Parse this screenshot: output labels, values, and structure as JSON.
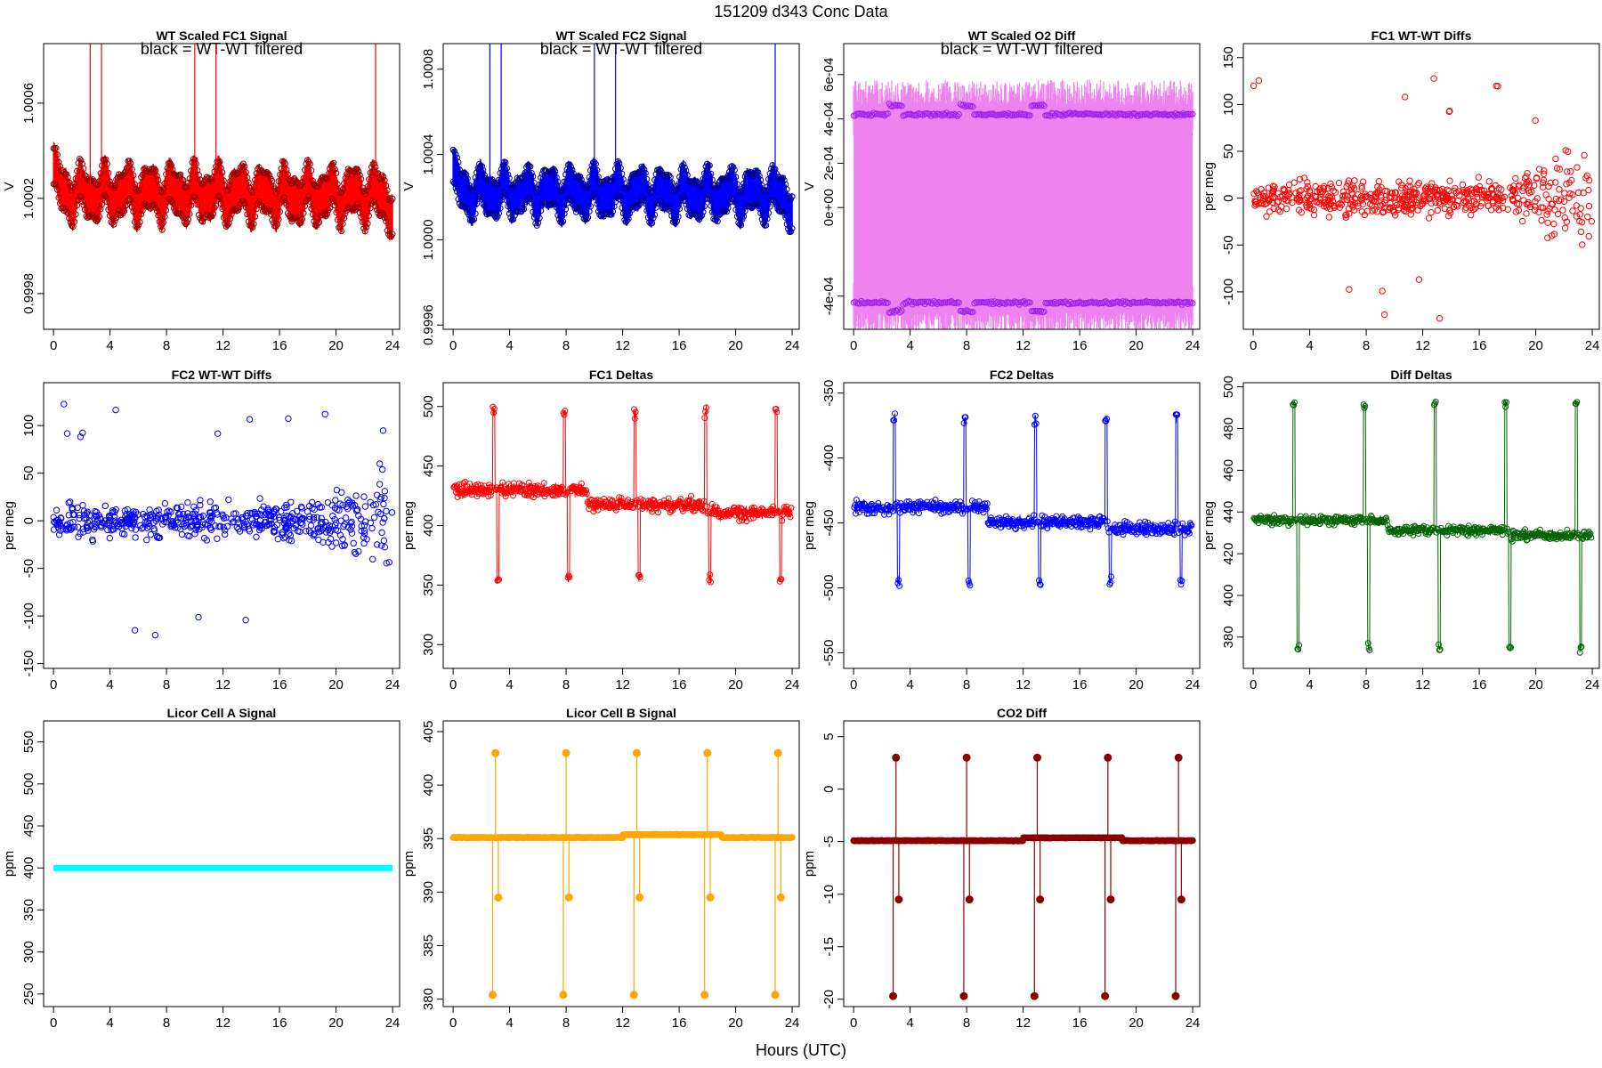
{
  "figure": {
    "title": "151209   d343   Conc Data",
    "xlabel": "Hours (UTC)"
  },
  "chart_data": [
    {
      "id": "fc1-signal",
      "type": "line",
      "title": "WT Scaled FC1 Signal",
      "note": "black = WT-WT filtered",
      "ylabel": "V",
      "xlim": [
        -0.7,
        24.5
      ],
      "ylim": [
        0.99965,
        1.00085
      ],
      "xticks": [
        0,
        4,
        8,
        12,
        16,
        20,
        24
      ],
      "xtick_labels": [
        "0",
        "4",
        "8",
        "12",
        "16",
        "20",
        "24"
      ],
      "yticks": [
        0.9998,
        1.0002,
        1.0006
      ],
      "ytick_labels": [
        "0.9998",
        "1.0002",
        "1.0006"
      ],
      "color": "#ff0000",
      "marker_color": "#8b0000",
      "style": "band",
      "center": 1.00022,
      "amplitude": 0.00014,
      "mode": "wave"
    },
    {
      "id": "fc2-signal",
      "type": "line",
      "title": "WT Scaled FC2 Signal",
      "note": "black = WT-WT filtered",
      "ylabel": "V",
      "xlim": [
        -0.7,
        24.5
      ],
      "ylim": [
        0.99958,
        1.00092
      ],
      "xticks": [
        0,
        4,
        8,
        12,
        16,
        20,
        24
      ],
      "xtick_labels": [
        "0",
        "4",
        "8",
        "12",
        "16",
        "20",
        "24"
      ],
      "yticks": [
        0.9996,
        1.0,
        1.0004,
        1.0008
      ],
      "ytick_labels": [
        "0.9996",
        "1.0000",
        "1.0004",
        "1.0008"
      ],
      "color": "#0000ff",
      "marker_color": "#00008b",
      "style": "band",
      "center": 1.00022,
      "amplitude": 0.00014,
      "mode": "wave"
    },
    {
      "id": "o2-diff",
      "type": "area",
      "title": "WT Scaled O2 Diff",
      "note": "black = WT-WT filtered",
      "ylabel": "V",
      "xlim": [
        -0.7,
        24.5
      ],
      "ylim": [
        -0.00055,
        0.00074
      ],
      "xticks": [
        0,
        4,
        8,
        12,
        16,
        20,
        24
      ],
      "xtick_labels": [
        "0",
        "4",
        "8",
        "12",
        "16",
        "20",
        "24"
      ],
      "yticks": [
        -0.0004,
        0,
        0.0002,
        0.0004,
        0.0006
      ],
      "ytick_labels": [
        "-4e-04",
        "0e+00",
        "2e-04",
        "4e-04",
        "6e-04"
      ],
      "color": "#ee82ee",
      "marker_color": "#a020f0",
      "style": "fill",
      "upper": 0.00042,
      "lower": -0.00043,
      "mode": "dual"
    },
    {
      "id": "fc1-wtwt",
      "type": "scatter",
      "title": "FC1 WT-WT Diffs",
      "ylabel": "per meg",
      "xlim": [
        -0.7,
        24.5
      ],
      "ylim": [
        -140,
        165
      ],
      "xticks": [
        0,
        4,
        8,
        12,
        16,
        20,
        24
      ],
      "xtick_labels": [
        "0",
        "4",
        "8",
        "12",
        "16",
        "20",
        "24"
      ],
      "yticks": [
        -100,
        -50,
        0,
        50,
        100,
        150
      ],
      "ytick_labels": [
        "-100",
        "-50",
        "0",
        "50",
        "100",
        "150"
      ],
      "color": "#ff0000",
      "center": 0,
      "spread": 20,
      "mode": "scatter"
    },
    {
      "id": "fc2-wtwt",
      "type": "scatter",
      "title": "FC2 WT-WT Diffs",
      "ylabel": "per meg",
      "xlim": [
        -0.7,
        24.5
      ],
      "ylim": [
        -155,
        145
      ],
      "xticks": [
        0,
        4,
        8,
        12,
        16,
        20,
        24
      ],
      "xtick_labels": [
        "0",
        "4",
        "8",
        "12",
        "16",
        "20",
        "24"
      ],
      "yticks": [
        -150,
        -100,
        -50,
        0,
        50,
        100
      ],
      "ytick_labels": [
        "-150",
        "-100",
        "-50",
        "0",
        "50",
        "100"
      ],
      "color": "#0000ff",
      "center": 0,
      "spread": 20,
      "mode": "scatter"
    },
    {
      "id": "fc1-deltas",
      "type": "line",
      "title": "FC1 Deltas",
      "ylabel": "per meg",
      "xlim": [
        -0.7,
        24.5
      ],
      "ylim": [
        280,
        520
      ],
      "xticks": [
        0,
        4,
        8,
        12,
        16,
        20,
        24
      ],
      "xtick_labels": [
        "0",
        "4",
        "8",
        "12",
        "16",
        "20",
        "24"
      ],
      "yticks": [
        300,
        350,
        400,
        450,
        500
      ],
      "ytick_labels": [
        "300",
        "350",
        "400",
        "450",
        "500"
      ],
      "color": "#ff0000",
      "center": 430,
      "spread": 8,
      "mode": "deltas",
      "spike_times": [
        2.8,
        7.8,
        12.8,
        17.8,
        22.8
      ],
      "spike_high": 495,
      "spike_low": 355
    },
    {
      "id": "fc2-deltas",
      "type": "line",
      "title": "FC2 Deltas",
      "ylabel": "per meg",
      "xlim": [
        -0.7,
        24.5
      ],
      "ylim": [
        -562,
        -342
      ],
      "xticks": [
        0,
        4,
        8,
        12,
        16,
        20,
        24
      ],
      "xtick_labels": [
        "0",
        "4",
        "8",
        "12",
        "16",
        "20",
        "24"
      ],
      "yticks": [
        -550,
        -500,
        -450,
        -400,
        -350
      ],
      "ytick_labels": [
        "-550",
        "-500",
        "-450",
        "-400",
        "-350"
      ],
      "color": "#0000ff",
      "center": -438,
      "spread": 7,
      "mode": "deltas",
      "spike_times": [
        2.8,
        7.8,
        12.8,
        17.8,
        22.8
      ],
      "spike_high": -370,
      "spike_low": -495
    },
    {
      "id": "diff-deltas",
      "type": "line",
      "title": "Diff Deltas",
      "ylabel": "per meg",
      "xlim": [
        -0.7,
        24.5
      ],
      "ylim": [
        365,
        502
      ],
      "xticks": [
        0,
        4,
        8,
        12,
        16,
        20,
        24
      ],
      "xtick_labels": [
        "0",
        "4",
        "8",
        "12",
        "16",
        "20",
        "24"
      ],
      "yticks": [
        380,
        400,
        420,
        440,
        460,
        480,
        500
      ],
      "ytick_labels": [
        "380",
        "400",
        "420",
        "440",
        "460",
        "480",
        "500"
      ],
      "color": "#006400",
      "center": 436,
      "spread": 3,
      "mode": "deltas",
      "spike_times": [
        2.8,
        7.8,
        12.8,
        17.8,
        22.8
      ],
      "spike_high": 492,
      "spike_low": 375
    },
    {
      "id": "licor-a",
      "type": "line",
      "title": "Licor Cell A Signal",
      "ylabel": "ppm",
      "xlim": [
        -0.7,
        24.5
      ],
      "ylim": [
        235,
        575
      ],
      "xticks": [
        0,
        4,
        8,
        12,
        16,
        20,
        24
      ],
      "xtick_labels": [
        "0",
        "4",
        "8",
        "12",
        "16",
        "20",
        "24"
      ],
      "yticks": [
        250,
        300,
        350,
        400,
        450,
        500,
        550
      ],
      "ytick_labels": [
        "250",
        "300",
        "350",
        "400",
        "450",
        "500",
        "550"
      ],
      "color": "#00ffff",
      "center": 400,
      "mode": "flat"
    },
    {
      "id": "licor-b",
      "type": "line",
      "title": "Licor Cell B Signal",
      "ylabel": "ppm",
      "xlim": [
        -0.7,
        24.5
      ],
      "ylim": [
        379.3,
        406
      ],
      "xticks": [
        0,
        4,
        8,
        12,
        16,
        20,
        24
      ],
      "xtick_labels": [
        "0",
        "4",
        "8",
        "12",
        "16",
        "20",
        "24"
      ],
      "yticks": [
        380,
        385,
        390,
        395,
        400,
        405
      ],
      "ytick_labels": [
        "380",
        "385",
        "390",
        "395",
        "400",
        "405"
      ],
      "color": "#ffa500",
      "center": 395.1,
      "mode": "licor",
      "spike_times": [
        2.8,
        7.8,
        12.8,
        17.8,
        22.8
      ],
      "spike_high": 403,
      "spike_low": 380.4,
      "mid_low": 389.5
    },
    {
      "id": "co2-diff",
      "type": "line",
      "title": "CO2 Diff",
      "ylabel": "ppm",
      "xlim": [
        -0.7,
        24.5
      ],
      "ylim": [
        -20.7,
        6.5
      ],
      "xticks": [
        0,
        4,
        8,
        12,
        16,
        20,
        24
      ],
      "xtick_labels": [
        "0",
        "4",
        "8",
        "12",
        "16",
        "20",
        "24"
      ],
      "yticks": [
        -20,
        -15,
        -10,
        -5,
        0,
        5
      ],
      "ytick_labels": [
        "-20",
        "-15",
        "-10",
        "-5",
        "0",
        "5"
      ],
      "color": "#8b0000",
      "center": -4.9,
      "mode": "licor",
      "spike_times": [
        2.8,
        7.8,
        12.8,
        17.8,
        22.8
      ],
      "spike_high": 3.0,
      "spike_low": -19.7,
      "mid_low": -10.5
    }
  ]
}
